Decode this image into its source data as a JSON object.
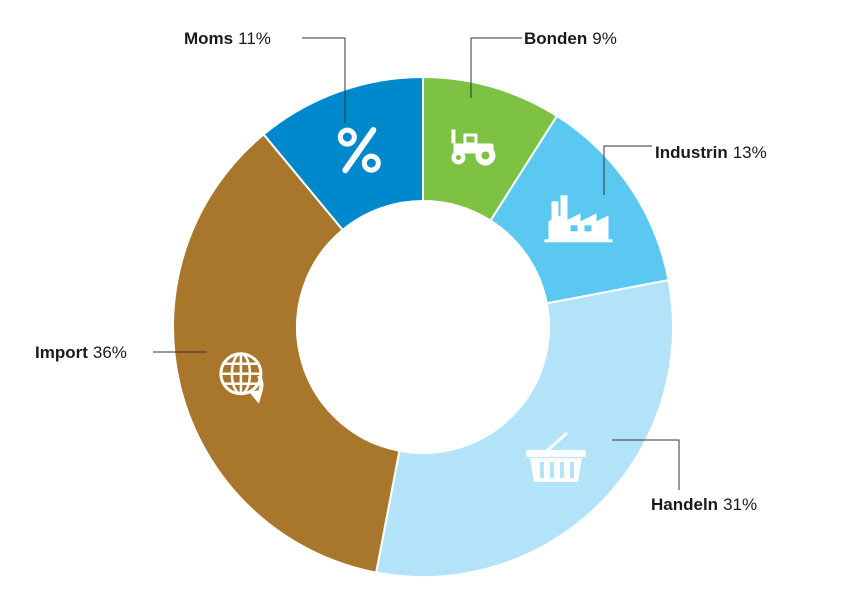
{
  "chart_data": {
    "type": "pie",
    "categories": [
      "Bonden",
      "Industrin",
      "Handeln",
      "Import",
      "Moms"
    ],
    "values": [
      9,
      13,
      31,
      36,
      11
    ],
    "value_labels": [
      "9%",
      "13%",
      "31%",
      "36%",
      "11%"
    ],
    "colors": [
      "#7dc242",
      "#5bc8f2",
      "#b3e3f9",
      "#a8772b",
      "#0088cc"
    ],
    "icons": [
      "tractor-icon",
      "factory-icon",
      "basket-icon",
      "globe-icon",
      "percent-icon"
    ],
    "donut": true,
    "title": "",
    "legend": "none"
  }
}
